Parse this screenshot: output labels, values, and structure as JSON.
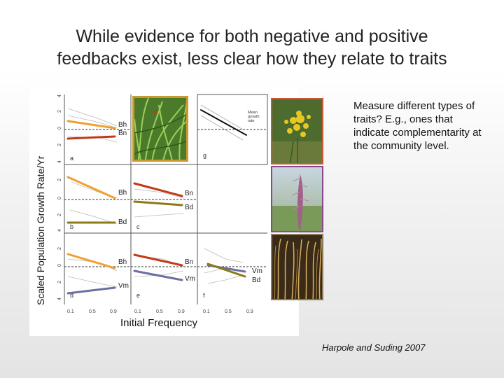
{
  "slide": {
    "title_line1": "While evidence for both negative and positive",
    "title_line2": "feedbacks exist, less clear how they relate to traits",
    "description": "Measure different types of traits? E.g., ones that indicate complementarity at the community level.",
    "citation": "Harpole and Suding 2007"
  },
  "figure": {
    "y_axis_label": "Scaled Population Growth Rate/Yr",
    "x_axis_label": "Initial Frequency",
    "x_tick_labels": [
      "0.1",
      "0.5",
      "0.9"
    ],
    "y_tick_labels": [
      "4",
      "2",
      "0",
      "2",
      "4"
    ],
    "panel_letters": [
      "a",
      "b",
      "c",
      "d",
      "e",
      "f",
      "g"
    ],
    "legend_text": "Mean growth rate",
    "species_labels": {
      "panel_a": [
        "Bh",
        "Bn"
      ],
      "panel_b": [
        "Bh",
        "Bd"
      ],
      "panel_c": [
        "Bn",
        "Bd"
      ],
      "panel_d": [
        "Bh",
        "Vm"
      ],
      "panel_e": [
        "Bn",
        "Vm"
      ],
      "panel_f": [
        "Vm",
        "Bd"
      ]
    },
    "series_colors": {
      "Bh": "#f0a030",
      "Bn": "#c03a1a",
      "Bd": "#8a7a18",
      "Vm": "#6a6ea0"
    }
  },
  "photos": [
    "grass-photo",
    "yellow-flower-photo",
    "purple-seedhead-photo",
    "dry-grass-photo"
  ]
}
